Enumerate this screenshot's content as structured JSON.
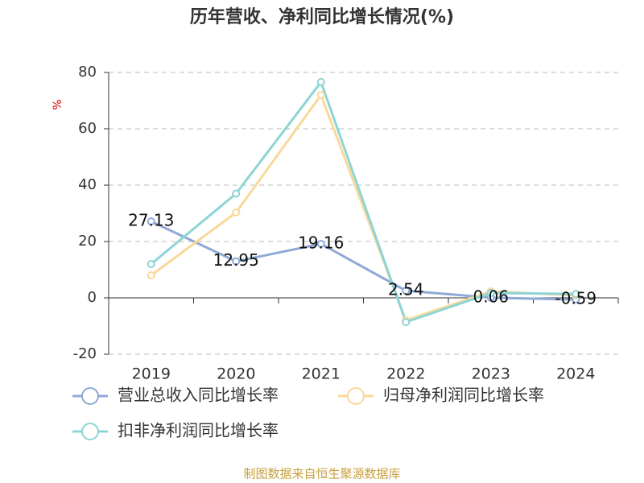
{
  "chart_data": {
    "type": "line",
    "title": "历年营收、净利同比增长情况(%)",
    "y_label": "%",
    "categories": [
      "2019",
      "2020",
      "2021",
      "2022",
      "2023",
      "2024"
    ],
    "series": [
      {
        "name": "营业总收入同比增长率",
        "color": "#8fa9d6",
        "values": [
          27.13,
          12.95,
          19.16,
          2.54,
          0.06,
          -0.59
        ],
        "show_labels": true
      },
      {
        "name": "归母净利润同比增长率",
        "color": "#f9d99a",
        "values": [
          8,
          30.3,
          72,
          -8,
          2.3,
          0.9
        ],
        "show_labels": false
      },
      {
        "name": "扣非净利润同比增长率",
        "color": "#8dd4d4",
        "values": [
          12,
          37,
          76.6,
          -8.6,
          1.7,
          1.4
        ],
        "show_labels": false
      }
    ],
    "ylim": [
      -20,
      80
    ],
    "yticks": [
      -20,
      0,
      20,
      40,
      60,
      80
    ],
    "grid": true,
    "source": "制图数据来自恒生聚源数据库"
  }
}
